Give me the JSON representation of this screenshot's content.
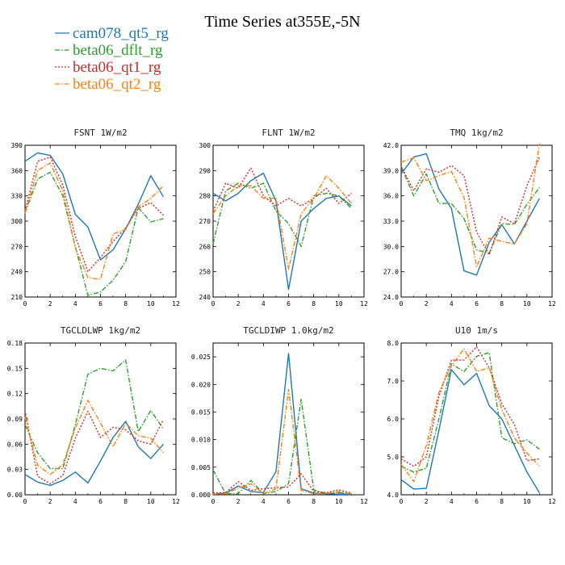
{
  "title": "Time Series at355E,-5N",
  "legend": [
    {
      "name": "cam078_qt5_rg",
      "color": "#1f77b4",
      "dash": "solid"
    },
    {
      "name": "beta06_dflt_rg",
      "color": "#2ca02c",
      "dash": "dashdot"
    },
    {
      "name": "beta06_qt1_rg",
      "color": "#d62728",
      "dash": "dot"
    },
    {
      "name": "beta06_qt2_rg",
      "color": "#ff7f0e",
      "dash": "dashdot"
    }
  ],
  "chart_data": [
    {
      "type": "line",
      "title": "FSNT   1W/m2",
      "x": [
        0,
        1,
        2,
        3,
        4,
        5,
        6,
        7,
        8,
        9,
        10,
        11
      ],
      "xlim": [
        0,
        12
      ],
      "xticks": [
        "0",
        "2",
        "4",
        "6",
        "8",
        "10",
        "12"
      ],
      "ylim": [
        210,
        390
      ],
      "yticks": [
        "210",
        "240",
        "270",
        "300",
        "330",
        "360",
        "390"
      ],
      "series": [
        {
          "name": "cam078_qt5_rg",
          "values": [
            371,
            381,
            378,
            356,
            308,
            293,
            254,
            266,
            291,
            320,
            354,
            329
          ]
        },
        {
          "name": "beta06_dflt_rg",
          "values": [
            310,
            350,
            358,
            330,
            270,
            212,
            216,
            230,
            252,
            316,
            299,
            303
          ]
        },
        {
          "name": "beta06_qt1_rg",
          "values": [
            312,
            371,
            376,
            343,
            282,
            240,
            257,
            276,
            292,
            315,
            322,
            307
          ]
        },
        {
          "name": "beta06_qt2_rg",
          "values": [
            309,
            360,
            369,
            336,
            268,
            233,
            231,
            285,
            290,
            317,
            327,
            342
          ]
        }
      ]
    },
    {
      "type": "line",
      "title": "FLNT   1W/m2",
      "x": [
        0,
        1,
        2,
        3,
        4,
        5,
        6,
        7,
        8,
        9,
        10,
        11
      ],
      "xlim": [
        0,
        12
      ],
      "xticks": [
        "0",
        "2",
        "4",
        "6",
        "8",
        "10",
        "12"
      ],
      "ylim": [
        240,
        300
      ],
      "yticks": [
        "240",
        "250",
        "260",
        "270",
        "280",
        "290",
        "300"
      ],
      "series": [
        {
          "name": "cam078_qt5_rg",
          "values": [
            281,
            278,
            281,
            286,
            289,
            278,
            243,
            270,
            275,
            279,
            280,
            276
          ]
        },
        {
          "name": "beta06_dflt_rg",
          "values": [
            261,
            282,
            285,
            283,
            285,
            274,
            269,
            260,
            280,
            281,
            280,
            275
          ]
        },
        {
          "name": "beta06_qt1_rg",
          "values": [
            274,
            285,
            283,
            291,
            280,
            276,
            279,
            276,
            279,
            283,
            277,
            281
          ]
        },
        {
          "name": "beta06_qt2_rg",
          "values": [
            273,
            280,
            284,
            284,
            279,
            279,
            251,
            273,
            279,
            288,
            283,
            277
          ]
        }
      ]
    },
    {
      "type": "line",
      "title": "TMQ   1kg/m2",
      "x": [
        0,
        1,
        2,
        3,
        4,
        5,
        6,
        7,
        8,
        9,
        10,
        11
      ],
      "xlim": [
        0,
        12
      ],
      "xticks": [
        "0",
        "2",
        "4",
        "6",
        "8",
        "10",
        "12"
      ],
      "ylim": [
        24,
        42
      ],
      "yticks": [
        "24.0",
        "27.0",
        "30.0",
        "33.0",
        "36.0",
        "39.0",
        "42.0"
      ],
      "series": [
        {
          "name": "cam078_qt5_rg",
          "values": [
            38.6,
            40.6,
            41.0,
            36.8,
            34.5,
            27.1,
            26.6,
            30.5,
            32.6,
            30.3,
            33.0,
            35.7
          ]
        },
        {
          "name": "beta06_dflt_rg",
          "values": [
            39.5,
            36.0,
            38.6,
            35.1,
            35.1,
            33.3,
            29.6,
            29.2,
            32.7,
            32.6,
            35.0,
            37.0
          ]
        },
        {
          "name": "beta06_qt1_rg",
          "values": [
            39.5,
            36.6,
            39.2,
            38.8,
            39.6,
            38.4,
            31.7,
            29.0,
            33.5,
            32.7,
            37.2,
            40.6
          ]
        },
        {
          "name": "beta06_qt2_rg",
          "values": [
            40.0,
            40.5,
            37.8,
            38.4,
            38.9,
            35.8,
            27.6,
            31.0,
            30.6,
            30.3,
            32.7,
            42.2
          ]
        }
      ]
    },
    {
      "type": "line",
      "title": "TGCLDLWP   1kg/m2",
      "x": [
        0,
        1,
        2,
        3,
        4,
        5,
        6,
        7,
        8,
        9,
        10,
        11
      ],
      "xlim": [
        0,
        12
      ],
      "xticks": [
        "0",
        "2",
        "4",
        "6",
        "8",
        "10",
        "12"
      ],
      "ylim": [
        0,
        0.18
      ],
      "yticks": [
        "0.00",
        "0.03",
        "0.06",
        "0.09",
        "0.12",
        "0.15",
        "0.18"
      ],
      "series": [
        {
          "name": "cam078_qt5_rg",
          "values": [
            0.024,
            0.015,
            0.011,
            0.017,
            0.027,
            0.014,
            0.04,
            0.068,
            0.087,
            0.057,
            0.043,
            0.06
          ]
        },
        {
          "name": "beta06_dflt_rg",
          "values": [
            0.083,
            0.05,
            0.031,
            0.031,
            0.083,
            0.143,
            0.15,
            0.147,
            0.16,
            0.075,
            0.1,
            0.078
          ]
        },
        {
          "name": "beta06_qt1_rg",
          "values": [
            0.1,
            0.022,
            0.013,
            0.023,
            0.067,
            0.099,
            0.068,
            0.08,
            0.077,
            0.064,
            0.06,
            0.089
          ]
        },
        {
          "name": "beta06_qt2_rg",
          "values": [
            0.092,
            0.035,
            0.024,
            0.036,
            0.079,
            0.112,
            0.085,
            0.057,
            0.085,
            0.07,
            0.067,
            0.05
          ]
        }
      ]
    },
    {
      "type": "line",
      "title": "TGCLDIWP   1.0kg/m2",
      "x": [
        0,
        1,
        2,
        3,
        4,
        5,
        6,
        7,
        8,
        9,
        10,
        11
      ],
      "xlim": [
        0,
        12
      ],
      "xticks": [
        "0",
        "2",
        "4",
        "6",
        "8",
        "10",
        "12"
      ],
      "ylim": [
        0,
        0.0275
      ],
      "yticks": [
        "0.000",
        "0.005",
        "0.010",
        "0.015",
        "0.020",
        "0.025"
      ],
      "series": [
        {
          "name": "cam078_qt5_rg",
          "values": [
            0.0001,
            0.0003,
            0.0016,
            0.0006,
            0.0004,
            0.0042,
            0.0256,
            0.0011,
            0.0003,
            0.0002,
            0.0001,
            0.0001
          ]
        },
        {
          "name": "beta06_dflt_rg",
          "values": [
            0.0045,
            0.0002,
            0.0002,
            0.0026,
            0.0002,
            0.0006,
            0.002,
            0.0173,
            0.0009,
            0.0002,
            0.0004,
            0.0001
          ]
        },
        {
          "name": "beta06_qt1_rg",
          "values": [
            0.0003,
            0.0004,
            0.0024,
            0.0008,
            0.0011,
            0.0013,
            0.0014,
            0.0038,
            0.0006,
            0.0004,
            0.0009,
            0.0003
          ]
        },
        {
          "name": "beta06_qt2_rg",
          "values": [
            0.0001,
            0.0002,
            0.0012,
            0.002,
            0.0002,
            0.0011,
            0.0191,
            0.0008,
            0.0002,
            0.0002,
            0.0006,
            0.0001
          ]
        }
      ]
    },
    {
      "type": "line",
      "title": "U10   1m/s",
      "x": [
        0,
        1,
        2,
        3,
        4,
        5,
        6,
        7,
        8,
        9,
        10,
        11
      ],
      "xlim": [
        0,
        12
      ],
      "xticks": [
        "0",
        "2",
        "4",
        "6",
        "8",
        "10",
        "12"
      ],
      "ylim": [
        4.0,
        8.0
      ],
      "yticks": [
        "4.0",
        "5.0",
        "6.0",
        "7.0",
        "8.0"
      ],
      "series": [
        {
          "name": "cam078_qt5_rg",
          "values": [
            4.4,
            4.15,
            4.17,
            5.7,
            7.3,
            6.9,
            7.2,
            6.35,
            6.0,
            5.3,
            4.6,
            4.05
          ]
        },
        {
          "name": "beta06_dflt_rg",
          "values": [
            4.75,
            4.6,
            4.7,
            6.0,
            7.45,
            7.25,
            7.65,
            7.75,
            5.5,
            5.35,
            5.45,
            5.2
          ]
        },
        {
          "name": "beta06_qt1_rg",
          "values": [
            4.95,
            4.75,
            5.0,
            6.6,
            7.55,
            7.55,
            7.9,
            7.35,
            6.4,
            5.85,
            4.9,
            4.95
          ]
        },
        {
          "name": "beta06_qt2_rg",
          "values": [
            4.8,
            4.35,
            5.3,
            6.7,
            7.4,
            7.85,
            7.25,
            7.35,
            6.25,
            5.5,
            5.1,
            4.75
          ]
        }
      ]
    }
  ]
}
